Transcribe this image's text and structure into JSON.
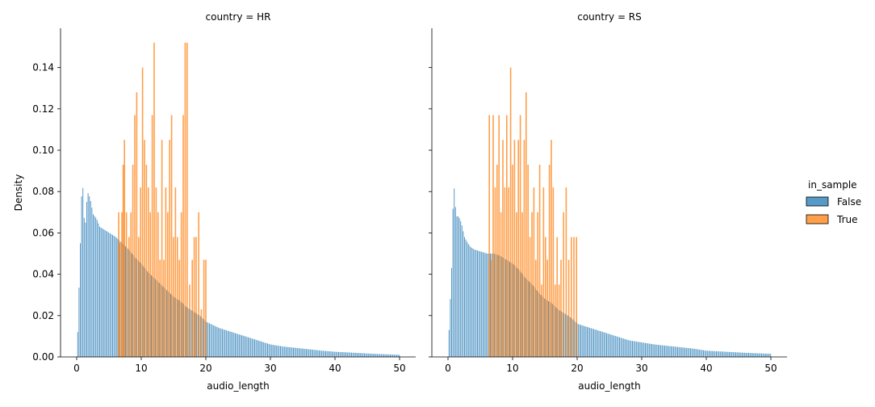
{
  "chart_data": {
    "type": "bar",
    "ylabel": "Density",
    "xlabel": "audio_length",
    "legend_title": "in_sample",
    "legend_placement": "right",
    "legend": [
      {
        "name": "False",
        "color": "#1f77b4"
      },
      {
        "name": "True",
        "color": "#ff7f0e"
      }
    ],
    "xlim": [
      -2.5,
      52.5
    ],
    "ylim": [
      0,
      0.159
    ],
    "x_ticks": [
      0,
      10,
      20,
      30,
      40,
      50
    ],
    "y_ticks": [
      0.0,
      0.02,
      0.04,
      0.06,
      0.08,
      0.1,
      0.12,
      0.14
    ],
    "y_tick_labels": [
      "0.00",
      "0.02",
      "0.04",
      "0.06",
      "0.08",
      "0.10",
      "0.12",
      "0.14"
    ],
    "grid": false,
    "panels": [
      {
        "title": "country = HR",
        "series": [
          {
            "name": "False",
            "points": [
              [
                0.1,
                0.012
              ],
              [
                0.5,
                0.055
              ],
              [
                0.8,
                0.089
              ],
              [
                1.2,
                0.06
              ],
              [
                1.6,
                0.08
              ],
              [
                2.0,
                0.077
              ],
              [
                2.5,
                0.069
              ],
              [
                3,
                0.067
              ],
              [
                3.5,
                0.063
              ],
              [
                4,
                0.062
              ],
              [
                5,
                0.06
              ],
              [
                6,
                0.058
              ],
              [
                7,
                0.055
              ],
              [
                8,
                0.052
              ],
              [
                9,
                0.048
              ],
              [
                10,
                0.045
              ],
              [
                11,
                0.041
              ],
              [
                12,
                0.038
              ],
              [
                13,
                0.035
              ],
              [
                14,
                0.032
              ],
              [
                15,
                0.029
              ],
              [
                16,
                0.027
              ],
              [
                17,
                0.024
              ],
              [
                18,
                0.022
              ],
              [
                19,
                0.02
              ],
              [
                20,
                0.017
              ],
              [
                22,
                0.014
              ],
              [
                24,
                0.012
              ],
              [
                26,
                0.01
              ],
              [
                28,
                0.008
              ],
              [
                30,
                0.006
              ],
              [
                32,
                0.005
              ],
              [
                35,
                0.004
              ],
              [
                38,
                0.003
              ],
              [
                40,
                0.0025
              ],
              [
                43,
                0.002
              ],
              [
                46,
                0.0015
              ],
              [
                50,
                0.001
              ]
            ]
          },
          {
            "name": "True",
            "points": [
              [
                6.4,
                0.07
              ],
              [
                6.6,
                0.055
              ],
              [
                6.9,
                0.07
              ],
              [
                7.1,
                0.093
              ],
              [
                7.3,
                0.105
              ],
              [
                7.6,
                0.07
              ],
              [
                8.0,
                0.058
              ],
              [
                8.3,
                0.07
              ],
              [
                8.6,
                0.093
              ],
              [
                8.9,
                0.117
              ],
              [
                9.2,
                0.128
              ],
              [
                9.5,
                0.058
              ],
              [
                9.8,
                0.082
              ],
              [
                10.1,
                0.14
              ],
              [
                10.4,
                0.105
              ],
              [
                10.7,
                0.093
              ],
              [
                11.0,
                0.082
              ],
              [
                11.3,
                0.07
              ],
              [
                11.6,
                0.117
              ],
              [
                11.9,
                0.152
              ],
              [
                12.2,
                0.082
              ],
              [
                12.5,
                0.07
              ],
              [
                12.8,
                0.047
              ],
              [
                13.1,
                0.105
              ],
              [
                13.4,
                0.047
              ],
              [
                13.7,
                0.082
              ],
              [
                14.0,
                0.07
              ],
              [
                14.3,
                0.105
              ],
              [
                14.6,
                0.117
              ],
              [
                14.9,
                0.058
              ],
              [
                15.2,
                0.082
              ],
              [
                15.5,
                0.058
              ],
              [
                15.8,
                0.047
              ],
              [
                16.1,
                0.07
              ],
              [
                16.4,
                0.117
              ],
              [
                16.7,
                0.152
              ],
              [
                17.0,
                0.152
              ],
              [
                17.4,
                0.035
              ],
              [
                17.8,
                0.047
              ],
              [
                18.1,
                0.058
              ],
              [
                18.4,
                0.058
              ],
              [
                18.8,
                0.07
              ],
              [
                19.2,
                0.023
              ],
              [
                19.6,
                0.047
              ],
              [
                19.9,
                0.047
              ]
            ]
          }
        ]
      },
      {
        "title": "country = RS",
        "series": [
          {
            "name": "False",
            "points": [
              [
                0.1,
                0.013
              ],
              [
                0.5,
                0.043
              ],
              [
                0.8,
                0.086
              ],
              [
                1.2,
                0.068
              ],
              [
                1.6,
                0.068
              ],
              [
                2.0,
                0.065
              ],
              [
                2.5,
                0.058
              ],
              [
                3,
                0.055
              ],
              [
                3.5,
                0.053
              ],
              [
                4,
                0.052
              ],
              [
                5,
                0.051
              ],
              [
                6,
                0.05
              ],
              [
                7,
                0.05
              ],
              [
                8,
                0.049
              ],
              [
                9,
                0.047
              ],
              [
                10,
                0.045
              ],
              [
                11,
                0.042
              ],
              [
                12,
                0.038
              ],
              [
                13,
                0.035
              ],
              [
                14,
                0.031
              ],
              [
                15,
                0.028
              ],
              [
                16,
                0.026
              ],
              [
                17,
                0.023
              ],
              [
                18,
                0.021
              ],
              [
                19,
                0.019
              ],
              [
                20,
                0.016
              ],
              [
                22,
                0.014
              ],
              [
                24,
                0.012
              ],
              [
                26,
                0.01
              ],
              [
                28,
                0.008
              ],
              [
                30,
                0.007
              ],
              [
                32,
                0.006
              ],
              [
                35,
                0.005
              ],
              [
                38,
                0.004
              ],
              [
                40,
                0.003
              ],
              [
                43,
                0.0025
              ],
              [
                46,
                0.002
              ],
              [
                50,
                0.0015
              ]
            ]
          },
          {
            "name": "True",
            "points": [
              [
                6.3,
                0.117
              ],
              [
                6.6,
                0.047
              ],
              [
                6.9,
                0.117
              ],
              [
                7.2,
                0.082
              ],
              [
                7.5,
                0.093
              ],
              [
                7.8,
                0.117
              ],
              [
                8.1,
                0.07
              ],
              [
                8.4,
                0.105
              ],
              [
                8.7,
                0.082
              ],
              [
                9.0,
                0.117
              ],
              [
                9.3,
                0.082
              ],
              [
                9.6,
                0.14
              ],
              [
                9.9,
                0.093
              ],
              [
                10.2,
                0.105
              ],
              [
                10.5,
                0.07
              ],
              [
                10.8,
                0.105
              ],
              [
                11.1,
                0.117
              ],
              [
                11.4,
                0.07
              ],
              [
                11.7,
                0.105
              ],
              [
                12.0,
                0.128
              ],
              [
                12.3,
                0.093
              ],
              [
                12.6,
                0.058
              ],
              [
                12.9,
                0.07
              ],
              [
                13.2,
                0.082
              ],
              [
                13.5,
                0.047
              ],
              [
                13.8,
                0.07
              ],
              [
                14.1,
                0.093
              ],
              [
                14.4,
                0.035
              ],
              [
                14.7,
                0.082
              ],
              [
                15.0,
                0.058
              ],
              [
                15.3,
                0.047
              ],
              [
                15.6,
                0.093
              ],
              [
                15.9,
                0.105
              ],
              [
                16.2,
                0.082
              ],
              [
                16.5,
                0.035
              ],
              [
                16.8,
                0.058
              ],
              [
                17.1,
                0.035
              ],
              [
                17.4,
                0.047
              ],
              [
                17.8,
                0.07
              ],
              [
                18.2,
                0.082
              ],
              [
                18.6,
                0.047
              ],
              [
                19.0,
                0.058
              ],
              [
                19.4,
                0.058
              ],
              [
                19.8,
                0.058
              ]
            ]
          }
        ]
      }
    ]
  }
}
